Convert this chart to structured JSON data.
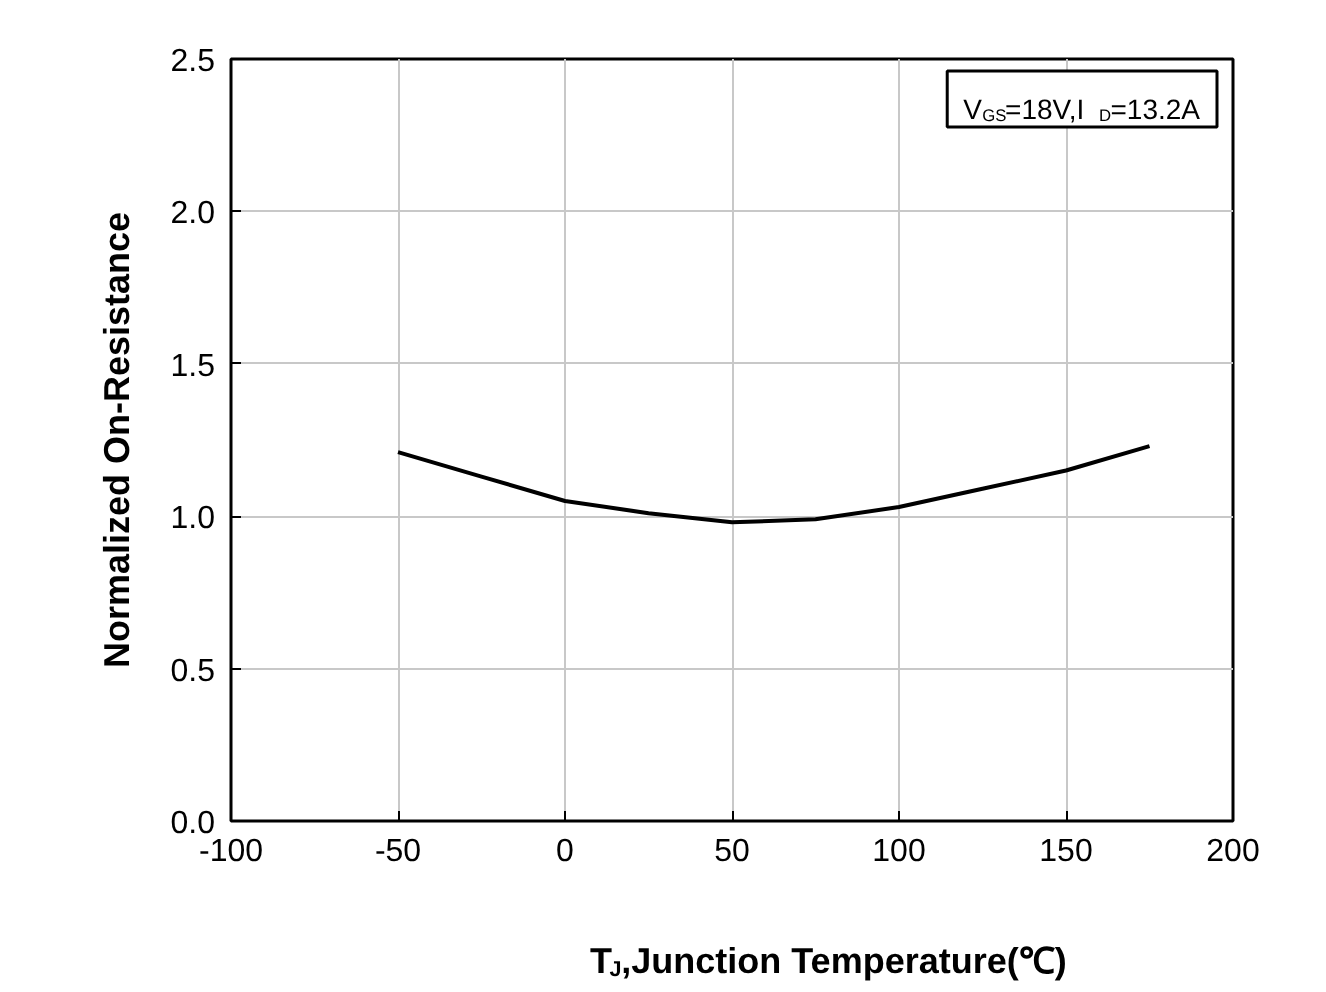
{
  "chart_data": {
    "type": "line",
    "xlabel": "T$_{J}$,Junction Temperature(℃)",
    "ylabel": "Normalized On-Resistance",
    "annotations": [
      "V$_{GS}$=18V,I$_{D}$=13.2A"
    ],
    "x": [
      -50,
      -25,
      0,
      25,
      50,
      75,
      100,
      125,
      150,
      175
    ],
    "series": [
      {
        "color": "#000000",
        "values": [
          1.21,
          1.13,
          1.05,
          1.01,
          0.98,
          0.99,
          1.03,
          1.09,
          1.15,
          1.23
        ]
      }
    ],
    "xlim": [
      -100,
      200
    ],
    "xticks": [
      -100,
      -50,
      0,
      50,
      100,
      150,
      200
    ],
    "ylim": [
      0,
      2.5
    ],
    "yticks": [
      {
        "value": 0,
        "label": "0.0"
      },
      {
        "value": 0.5,
        "label": "0.5"
      },
      {
        "value": 1,
        "label": "1.0"
      },
      {
        "value": 1.5,
        "label": "1.5"
      },
      {
        "value": 2,
        "label": "2.0"
      },
      {
        "value": 2.5,
        "label": "2.5"
      }
    ],
    "grid": true,
    "line_style": "solid",
    "marker": "none"
  }
}
